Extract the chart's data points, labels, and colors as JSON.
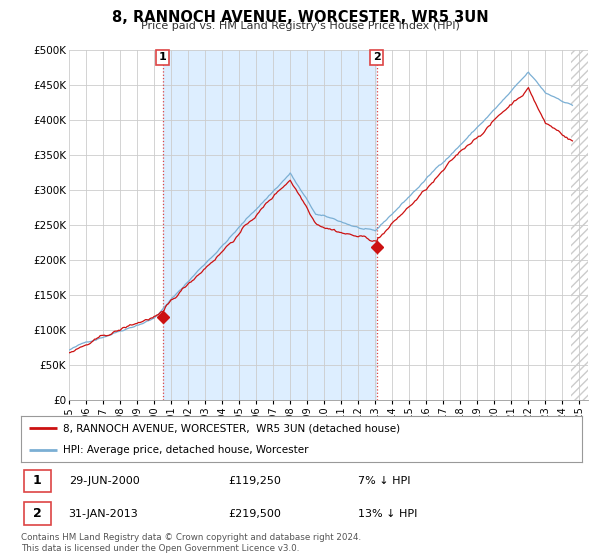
{
  "title": "8, RANNOCH AVENUE, WORCESTER, WR5 3UN",
  "subtitle": "Price paid vs. HM Land Registry's House Price Index (HPI)",
  "ylim": [
    0,
    500000
  ],
  "yticks": [
    0,
    50000,
    100000,
    150000,
    200000,
    250000,
    300000,
    350000,
    400000,
    450000,
    500000
  ],
  "xlim_start": 1995.0,
  "xlim_end": 2025.5,
  "xticks": [
    1995,
    1996,
    1997,
    1998,
    1999,
    2000,
    2001,
    2002,
    2003,
    2004,
    2005,
    2006,
    2007,
    2008,
    2009,
    2010,
    2011,
    2012,
    2013,
    2014,
    2015,
    2016,
    2017,
    2018,
    2019,
    2020,
    2021,
    2022,
    2023,
    2024,
    2025
  ],
  "hpi_color": "#7bafd4",
  "price_color": "#cc1111",
  "vline_color": "#dd4444",
  "shade_color": "#ddeeff",
  "marker1_x": 2000.5,
  "marker1_y": 119250,
  "marker1_label": "1",
  "marker2_x": 2013.08,
  "marker2_y": 219500,
  "marker2_label": "2",
  "sale1_date": "29-JUN-2000",
  "sale1_price": "£119,250",
  "sale1_pct": "7% ↓ HPI",
  "sale2_date": "31-JAN-2013",
  "sale2_price": "£219,500",
  "sale2_pct": "13% ↓ HPI",
  "legend_label1": "8, RANNOCH AVENUE, WORCESTER,  WR5 3UN (detached house)",
  "legend_label2": "HPI: Average price, detached house, Worcester",
  "footnote": "Contains HM Land Registry data © Crown copyright and database right 2024.\nThis data is licensed under the Open Government Licence v3.0.",
  "background_color": "#ffffff",
  "grid_color": "#cccccc"
}
